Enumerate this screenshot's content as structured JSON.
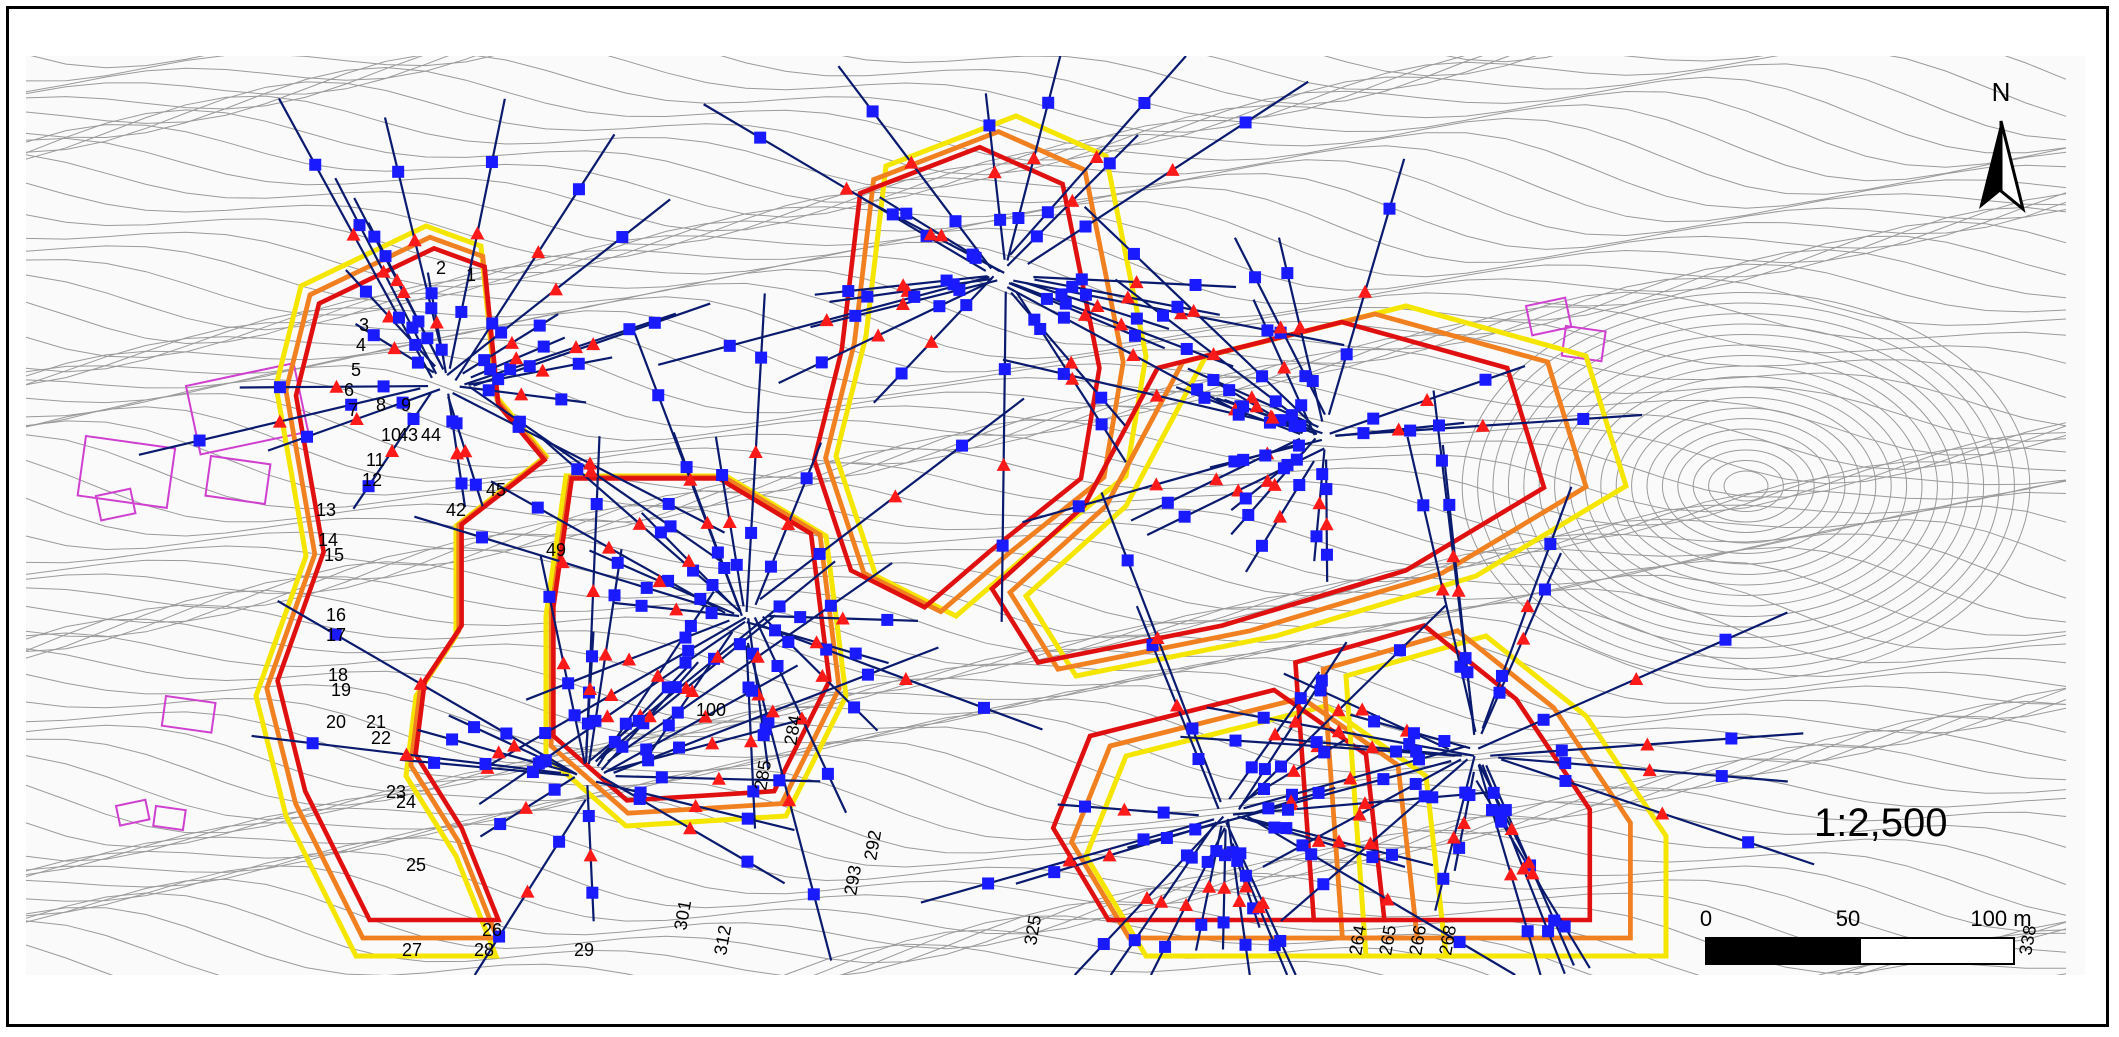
{
  "map": {
    "north_label": "N",
    "scale_ratio": "1:2,500",
    "scale_bar": {
      "ticks": [
        "0",
        "50",
        "100 m"
      ]
    },
    "colors": {
      "contour": "#9a9a9a",
      "section_line": "#0a1a6e",
      "survey_point": "#1a1aff",
      "boundary_yellow": "#f5e600",
      "boundary_orange": "#f08020",
      "boundary_red": "#e01010",
      "marker_red": "#ff1a1a",
      "building": "#d040d0"
    },
    "section_labels": [
      "1",
      "2",
      "3",
      "4",
      "5",
      "6",
      "7",
      "8",
      "9",
      "10",
      "11",
      "12",
      "13",
      "14",
      "15",
      "16",
      "17",
      "18",
      "19",
      "20",
      "21",
      "22",
      "23",
      "24",
      "25",
      "26",
      "27",
      "28",
      "29",
      "42",
      "43",
      "44",
      "45",
      "49",
      "100",
      "264",
      "265",
      "266",
      "268",
      "284",
      "285",
      "292",
      "293",
      "301",
      "312",
      "325",
      "338"
    ]
  }
}
